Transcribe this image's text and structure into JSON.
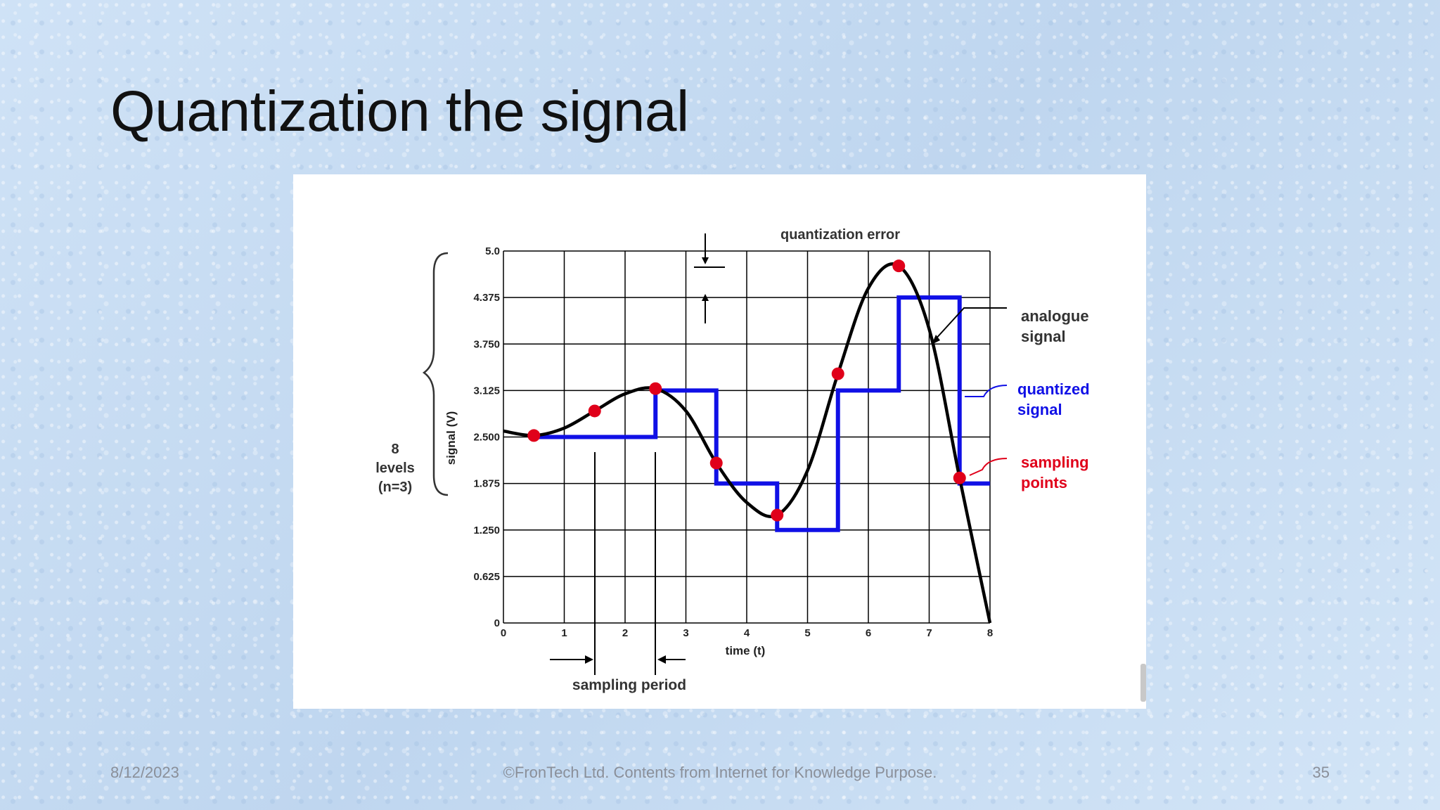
{
  "slide": {
    "title": "Quantization the signal",
    "footer_date": "8/12/2023",
    "footer_text": "©FronTech Ltd. Contents from Internet for Knowledge Purpose.",
    "page_number": "35"
  },
  "colors": {
    "analog": "#000000",
    "quantized": "#1010e6",
    "sampling_points": "#e0001a",
    "grid": "#000000",
    "sampling_label": "#e0001a",
    "quantized_label": "#1010e6"
  },
  "chart_data": {
    "type": "line",
    "title": "",
    "xlabel": "time (t)",
    "ylabel": "signal (V)",
    "xlim": [
      0,
      8
    ],
    "ylim": [
      0,
      5
    ],
    "x_ticks": [
      "0",
      "1",
      "2",
      "3",
      "4",
      "5",
      "6",
      "7",
      "8"
    ],
    "y_ticks": [
      "0",
      "0.625",
      "1.250",
      "1.875",
      "2.500",
      "3.125",
      "3.750",
      "4.375",
      "5.0"
    ],
    "grid": true,
    "series": [
      {
        "name": "analogue signal",
        "kind": "curve",
        "points": [
          [
            0,
            2.58
          ],
          [
            0.5,
            2.52
          ],
          [
            1.0,
            2.62
          ],
          [
            1.5,
            2.85
          ],
          [
            2.0,
            3.08
          ],
          [
            2.5,
            3.15
          ],
          [
            3.0,
            2.85
          ],
          [
            3.5,
            2.15
          ],
          [
            4.0,
            1.62
          ],
          [
            4.5,
            1.45
          ],
          [
            5.0,
            2.05
          ],
          [
            5.5,
            3.35
          ],
          [
            6.0,
            4.5
          ],
          [
            6.5,
            4.8
          ],
          [
            7.0,
            3.95
          ],
          [
            7.5,
            1.95
          ],
          [
            8.0,
            0.0
          ]
        ]
      },
      {
        "name": "quantized signal",
        "kind": "step",
        "points": [
          [
            0.5,
            2.5
          ],
          [
            2.5,
            2.5
          ],
          [
            2.5,
            3.125
          ],
          [
            3.5,
            3.125
          ],
          [
            3.5,
            1.875
          ],
          [
            4.5,
            1.875
          ],
          [
            4.5,
            1.25
          ],
          [
            5.5,
            1.25
          ],
          [
            5.5,
            3.125
          ],
          [
            6.5,
            3.125
          ],
          [
            6.5,
            4.375
          ],
          [
            7.5,
            4.375
          ],
          [
            7.5,
            1.875
          ],
          [
            8.0,
            1.875
          ]
        ]
      },
      {
        "name": "sampling points",
        "kind": "points",
        "points": [
          [
            0.5,
            2.52
          ],
          [
            1.5,
            2.85
          ],
          [
            2.5,
            3.15
          ],
          [
            3.5,
            2.15
          ],
          [
            4.5,
            1.45
          ],
          [
            5.5,
            3.35
          ],
          [
            6.5,
            4.8
          ],
          [
            7.5,
            1.95
          ]
        ]
      }
    ],
    "annotations": {
      "levels_line1": "8",
      "levels_line2": "levels",
      "levels_line3": "(n=3)",
      "quantization_error": "quantization error",
      "analogue_line1": "analogue",
      "analogue_line2": "signal",
      "quantized_line1": "quantized",
      "quantized_line2": "signal",
      "sampling_line1": "sampling",
      "sampling_line2": "points",
      "sampling_period": "sampling period"
    }
  }
}
